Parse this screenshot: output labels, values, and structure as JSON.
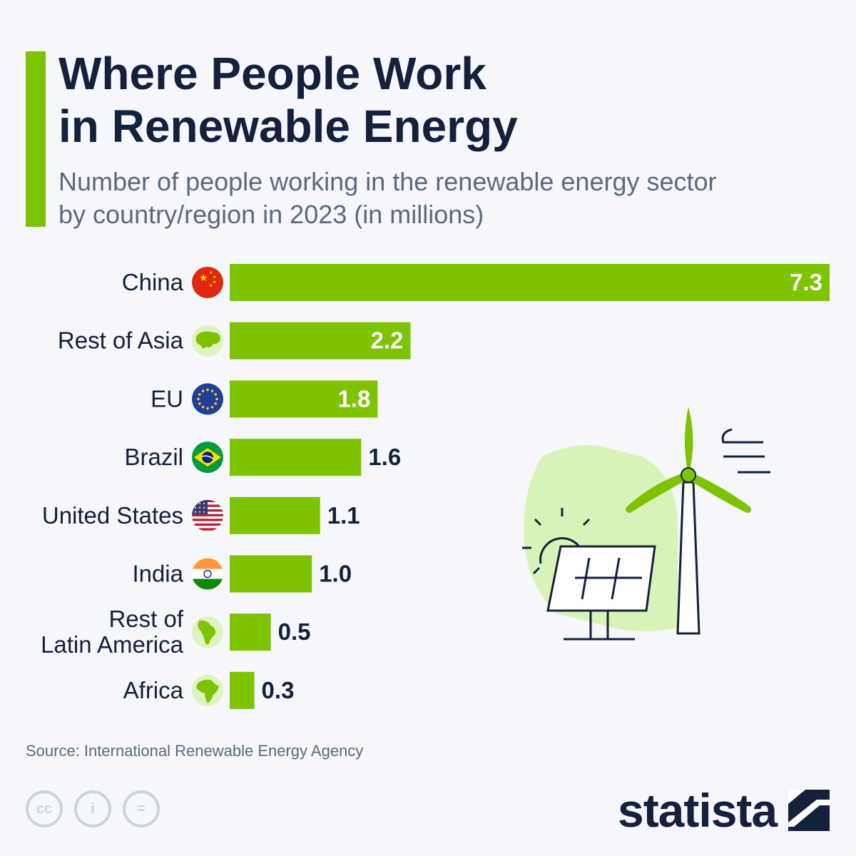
{
  "title": {
    "line1": "Where People Work",
    "line2": "in Renewable Energy"
  },
  "subtitle": {
    "line1": "Number of people working in the renewable energy sector",
    "line2": "by country/region in 2023 (in millions)"
  },
  "colors": {
    "accent": "#7dc300",
    "title": "#14213d",
    "subtitle": "#5a6b7f",
    "background": "#f5f7fa"
  },
  "chart_data": {
    "type": "bar",
    "orientation": "horizontal",
    "title": "Where People Work in Renewable Energy",
    "xlabel": "",
    "ylabel": "",
    "unit": "millions",
    "xlim": [
      0,
      7.3
    ],
    "categories": [
      {
        "lines": [
          "China"
        ],
        "icon": "china-flag-icon"
      },
      {
        "lines": [
          "Rest of Asia"
        ],
        "icon": "asia-map-icon"
      },
      {
        "lines": [
          "EU"
        ],
        "icon": "eu-flag-icon"
      },
      {
        "lines": [
          "Brazil"
        ],
        "icon": "brazil-flag-icon"
      },
      {
        "lines": [
          "United States"
        ],
        "icon": "us-flag-icon"
      },
      {
        "lines": [
          "India"
        ],
        "icon": "india-flag-icon"
      },
      {
        "lines": [
          "Rest of",
          "Latin America"
        ],
        "icon": "latin-america-map-icon"
      },
      {
        "lines": [
          "Africa"
        ],
        "icon": "africa-map-icon"
      }
    ],
    "values": [
      7.3,
      2.2,
      1.8,
      1.6,
      1.1,
      1.0,
      0.5,
      0.3
    ],
    "value_labels": [
      "7.3",
      "2.2",
      "1.8",
      "1.6",
      "1.1",
      "1.0",
      "0.5",
      "0.3"
    ]
  },
  "illustration": {
    "icon": "wind-turbine-solar-panel-icon"
  },
  "source": "Source: International Renewable Energy Agency",
  "license_icons": [
    "cc-icon",
    "attribution-icon",
    "no-derivatives-icon"
  ],
  "license_labels": [
    "cc",
    "i",
    "="
  ],
  "brand": "statista"
}
